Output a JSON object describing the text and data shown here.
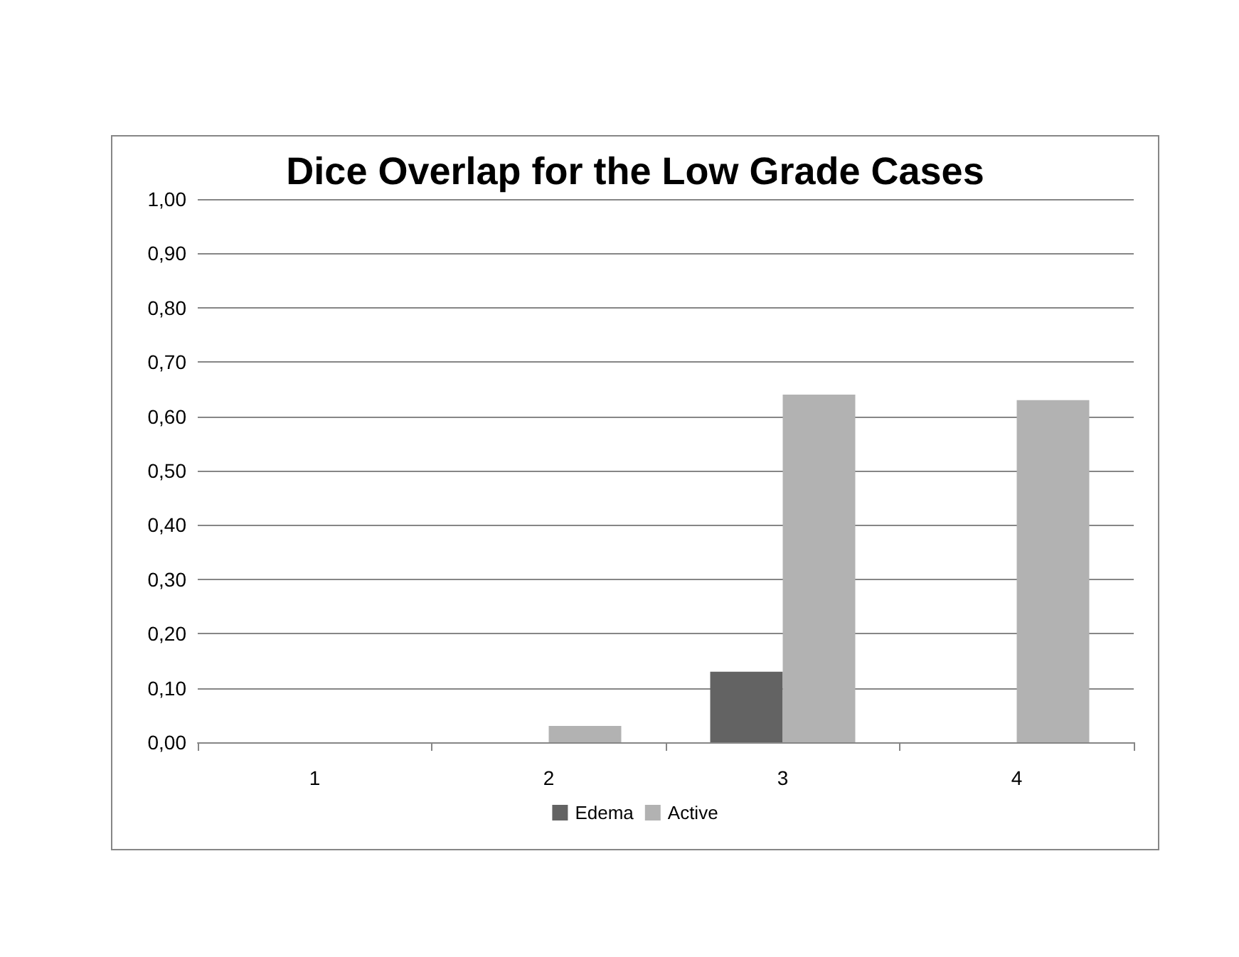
{
  "chart_data": {
    "type": "bar",
    "title": "Dice Overlap for the Low Grade Cases",
    "categories": [
      "1",
      "2",
      "3",
      "4"
    ],
    "series": [
      {
        "name": "Edema",
        "color": "#636363",
        "values": [
          0,
          0,
          0.13,
          0
        ]
      },
      {
        "name": "Active",
        "color": "#b2b2b2",
        "values": [
          0,
          0.03,
          0.64,
          0.63
        ]
      }
    ],
    "ylim": [
      0,
      1
    ],
    "yticks": [
      {
        "value": 0,
        "label": "0,00"
      },
      {
        "value": 0.1,
        "label": "0,10"
      },
      {
        "value": 0.2,
        "label": "0,20"
      },
      {
        "value": 0.3,
        "label": "0,30"
      },
      {
        "value": 0.4,
        "label": "0,40"
      },
      {
        "value": 0.5,
        "label": "0,50"
      },
      {
        "value": 0.6,
        "label": "0,60"
      },
      {
        "value": 0.7,
        "label": "0,70"
      },
      {
        "value": 0.8,
        "label": "0,80"
      },
      {
        "value": 0.9,
        "label": "0,90"
      },
      {
        "value": 1,
        "label": "1,00"
      }
    ],
    "grid": "y",
    "legend": "bottom"
  }
}
